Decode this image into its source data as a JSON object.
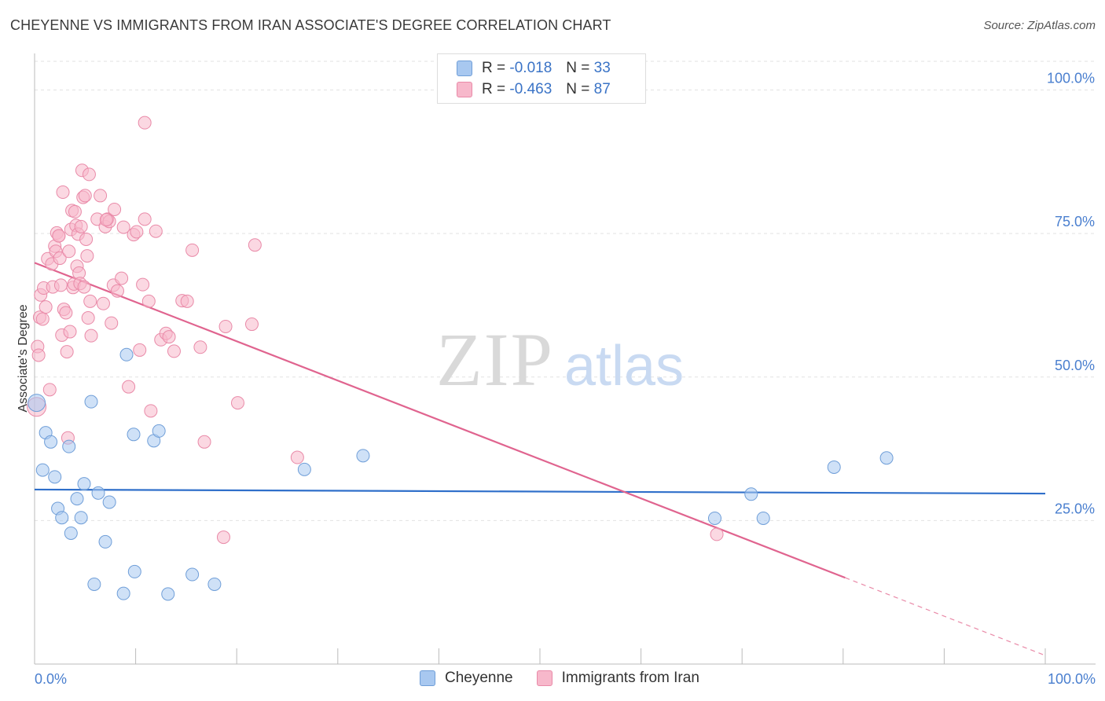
{
  "header": {
    "title": "CHEYENNE VS IMMIGRANTS FROM IRAN ASSOCIATE'S DEGREE CORRELATION CHART",
    "source": "Source: ZipAtlas.com"
  },
  "watermark": {
    "zip": "ZIP",
    "atlas": "atlas"
  },
  "legend": {
    "rows": [
      {
        "r_label": "R =",
        "r_value": "-0.018",
        "n_label": "N =",
        "n_value": "33",
        "color": "#a8c8f0",
        "border": "#6f9ed8"
      },
      {
        "r_label": "R =",
        "r_value": "-0.463",
        "n_label": "N =",
        "n_value": "87",
        "color": "#f7b8cb",
        "border": "#e98aa8"
      }
    ]
  },
  "bottom_legend": [
    {
      "label": "Cheyenne",
      "color": "#a8c8f0",
      "border": "#6f9ed8"
    },
    {
      "label": "Immigrants from Iran",
      "color": "#f7b8cb",
      "border": "#e98aa8"
    }
  ],
  "chart_data": {
    "type": "scatter",
    "ylabel": "Associate's Degree",
    "xlim": [
      0,
      100
    ],
    "ylim": [
      0,
      105
    ],
    "x_tick_labels": {
      "min": "0.0%",
      "max": "100.0%"
    },
    "y_ticks": [
      {
        "value": 25,
        "label": "25.0%"
      },
      {
        "value": 50,
        "label": "50.0%"
      },
      {
        "value": 75,
        "label": "75.0%"
      },
      {
        "value": 100,
        "label": "100.0%"
      }
    ],
    "grid": true,
    "series": [
      {
        "name": "Cheyenne",
        "color": "#6f9ed8",
        "fill": "#a8c8f0",
        "trend": {
          "x": [
            0,
            100
          ],
          "y": [
            30.4,
            29.7
          ],
          "solid_until": 100
        },
        "points": [
          {
            "x": 0.2,
            "y": 45.5,
            "r": 11
          },
          {
            "x": 0.8,
            "y": 33.8
          },
          {
            "x": 1.1,
            "y": 40.3
          },
          {
            "x": 1.6,
            "y": 38.7
          },
          {
            "x": 2.0,
            "y": 32.6
          },
          {
            "x": 2.3,
            "y": 27.1
          },
          {
            "x": 2.7,
            "y": 25.5
          },
          {
            "x": 3.4,
            "y": 37.9
          },
          {
            "x": 3.6,
            "y": 22.8
          },
          {
            "x": 4.2,
            "y": 28.8
          },
          {
            "x": 4.6,
            "y": 25.5
          },
          {
            "x": 4.9,
            "y": 31.4
          },
          {
            "x": 5.6,
            "y": 45.7
          },
          {
            "x": 5.9,
            "y": 13.9
          },
          {
            "x": 6.3,
            "y": 29.8
          },
          {
            "x": 7.0,
            "y": 21.3
          },
          {
            "x": 7.4,
            "y": 28.2
          },
          {
            "x": 8.8,
            "y": 12.3
          },
          {
            "x": 9.1,
            "y": 53.9
          },
          {
            "x": 9.8,
            "y": 40.0
          },
          {
            "x": 9.9,
            "y": 16.1
          },
          {
            "x": 11.8,
            "y": 38.9
          },
          {
            "x": 12.3,
            "y": 40.6
          },
          {
            "x": 13.2,
            "y": 12.2
          },
          {
            "x": 15.6,
            "y": 15.6
          },
          {
            "x": 17.8,
            "y": 13.9
          },
          {
            "x": 26.7,
            "y": 33.9
          },
          {
            "x": 32.5,
            "y": 36.3
          },
          {
            "x": 67.3,
            "y": 25.4
          },
          {
            "x": 70.9,
            "y": 29.6
          },
          {
            "x": 72.1,
            "y": 25.4
          },
          {
            "x": 79.1,
            "y": 34.3
          },
          {
            "x": 84.3,
            "y": 35.9
          }
        ]
      },
      {
        "name": "Immigrants from Iran",
        "color": "#e98aa8",
        "fill": "#f7b8cb",
        "trend": {
          "x": [
            0,
            100
          ],
          "y": [
            69.9,
            1.5
          ],
          "solid_until": 80.2
        },
        "points": [
          {
            "x": 0.2,
            "y": 44.8,
            "r": 12
          },
          {
            "x": 0.3,
            "y": 55.3
          },
          {
            "x": 0.4,
            "y": 53.8
          },
          {
            "x": 0.5,
            "y": 60.4
          },
          {
            "x": 0.6,
            "y": 64.3
          },
          {
            "x": 0.8,
            "y": 60.1
          },
          {
            "x": 0.9,
            "y": 65.5
          },
          {
            "x": 1.1,
            "y": 62.2
          },
          {
            "x": 1.3,
            "y": 70.6
          },
          {
            "x": 1.5,
            "y": 47.8
          },
          {
            "x": 1.7,
            "y": 69.7
          },
          {
            "x": 1.8,
            "y": 65.7
          },
          {
            "x": 2.0,
            "y": 72.8
          },
          {
            "x": 2.1,
            "y": 71.9
          },
          {
            "x": 2.2,
            "y": 75.1
          },
          {
            "x": 2.4,
            "y": 74.6
          },
          {
            "x": 2.5,
            "y": 70.7
          },
          {
            "x": 2.6,
            "y": 66.0
          },
          {
            "x": 2.7,
            "y": 57.3
          },
          {
            "x": 2.8,
            "y": 82.2
          },
          {
            "x": 2.9,
            "y": 61.8
          },
          {
            "x": 3.1,
            "y": 61.2
          },
          {
            "x": 3.2,
            "y": 54.4
          },
          {
            "x": 3.3,
            "y": 39.4
          },
          {
            "x": 3.4,
            "y": 71.9
          },
          {
            "x": 3.5,
            "y": 57.9
          },
          {
            "x": 3.6,
            "y": 75.7
          },
          {
            "x": 3.7,
            "y": 79.0
          },
          {
            "x": 3.8,
            "y": 65.6
          },
          {
            "x": 3.9,
            "y": 66.2
          },
          {
            "x": 4.0,
            "y": 78.8
          },
          {
            "x": 4.1,
            "y": 76.4
          },
          {
            "x": 4.2,
            "y": 69.3
          },
          {
            "x": 4.3,
            "y": 74.9
          },
          {
            "x": 4.4,
            "y": 68.1
          },
          {
            "x": 4.5,
            "y": 66.3
          },
          {
            "x": 4.6,
            "y": 76.2
          },
          {
            "x": 4.7,
            "y": 86.0
          },
          {
            "x": 4.8,
            "y": 81.3
          },
          {
            "x": 4.9,
            "y": 65.7
          },
          {
            "x": 5.0,
            "y": 81.6
          },
          {
            "x": 5.1,
            "y": 74.0
          },
          {
            "x": 5.2,
            "y": 71.1
          },
          {
            "x": 5.3,
            "y": 60.3
          },
          {
            "x": 5.4,
            "y": 85.3
          },
          {
            "x": 5.5,
            "y": 63.2
          },
          {
            "x": 5.6,
            "y": 57.2
          },
          {
            "x": 6.2,
            "y": 77.5
          },
          {
            "x": 6.5,
            "y": 81.6
          },
          {
            "x": 6.8,
            "y": 62.8
          },
          {
            "x": 7.0,
            "y": 76.2
          },
          {
            "x": 7.2,
            "y": 77.5
          },
          {
            "x": 7.4,
            "y": 77.1
          },
          {
            "x": 7.6,
            "y": 59.4
          },
          {
            "x": 7.8,
            "y": 66.0
          },
          {
            "x": 7.9,
            "y": 79.2
          },
          {
            "x": 8.2,
            "y": 65.0
          },
          {
            "x": 8.6,
            "y": 67.2
          },
          {
            "x": 8.8,
            "y": 76.1
          },
          {
            "x": 9.3,
            "y": 48.3
          },
          {
            "x": 9.8,
            "y": 74.8
          },
          {
            "x": 10.1,
            "y": 75.3
          },
          {
            "x": 10.4,
            "y": 54.7
          },
          {
            "x": 10.7,
            "y": 66.1
          },
          {
            "x": 10.9,
            "y": 77.5
          },
          {
            "x": 11.3,
            "y": 63.2
          },
          {
            "x": 11.5,
            "y": 44.1
          },
          {
            "x": 12.0,
            "y": 75.4
          },
          {
            "x": 12.5,
            "y": 56.5
          },
          {
            "x": 13.0,
            "y": 57.6
          },
          {
            "x": 13.3,
            "y": 57.0
          },
          {
            "x": 13.8,
            "y": 54.5
          },
          {
            "x": 14.6,
            "y": 63.3
          },
          {
            "x": 15.1,
            "y": 63.2
          },
          {
            "x": 15.6,
            "y": 72.1
          },
          {
            "x": 16.4,
            "y": 55.2
          },
          {
            "x": 16.8,
            "y": 38.7
          },
          {
            "x": 18.7,
            "y": 22.1
          },
          {
            "x": 18.9,
            "y": 58.8
          },
          {
            "x": 20.1,
            "y": 45.5
          },
          {
            "x": 21.5,
            "y": 59.2
          },
          {
            "x": 21.8,
            "y": 73.0
          },
          {
            "x": 26.0,
            "y": 36.0
          },
          {
            "x": 67.5,
            "y": 22.6
          },
          {
            "x": 10.9,
            "y": 94.3
          },
          {
            "x": 2.4,
            "y": 74.6
          },
          {
            "x": 7.1,
            "y": 77.4
          }
        ]
      }
    ]
  }
}
